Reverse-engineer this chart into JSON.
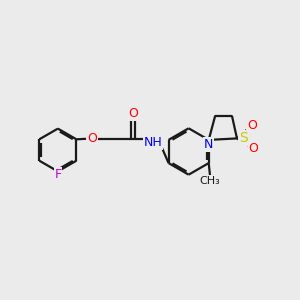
{
  "background_color": "#ebebeb",
  "bond_color": "#1a1a1a",
  "atom_colors": {
    "O": "#ff0000",
    "N": "#0000ee",
    "F": "#cc00cc",
    "S": "#cccc00",
    "C": "#1a1a1a",
    "H": "#1a1a1a"
  },
  "figsize": [
    3.0,
    3.0
  ],
  "dpi": 100
}
